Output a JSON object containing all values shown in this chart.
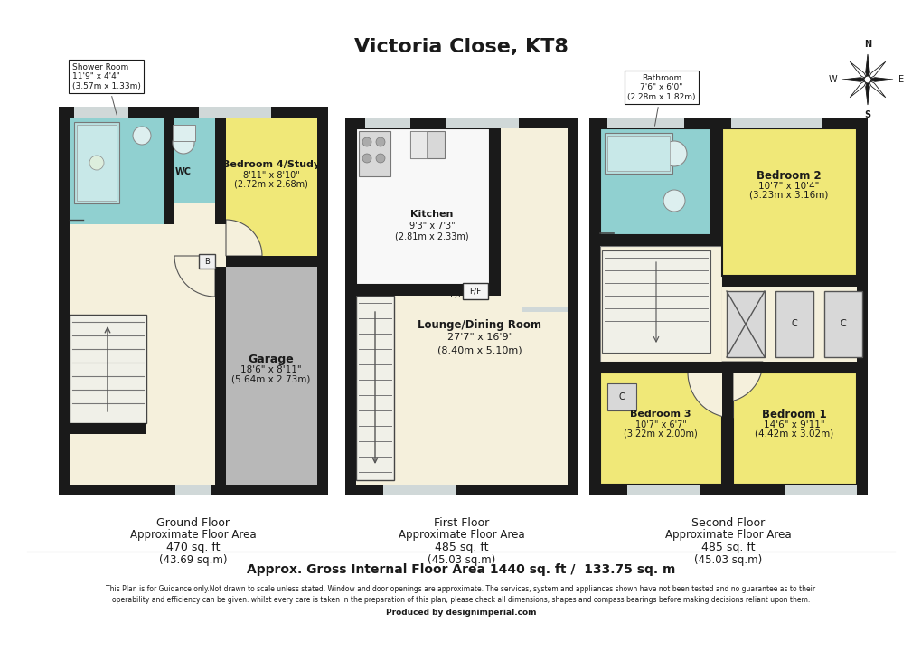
{
  "title": "Victoria Close, KT8",
  "background_color": "#ffffff",
  "colors": {
    "light_yellow": "#f0e878",
    "light_blue": "#90d0d0",
    "gray_garage": "#b8b8b8",
    "light_cream": "#f5f0dc",
    "wall": "#1a1a1a",
    "white": "#ffffff",
    "light_gray": "#d8d8d8",
    "stair_bg": "#f0f0f0"
  },
  "gross_area": "Approx. Gross Internal Floor Area 1440 sq. ft /  133.75 sq. m",
  "disclaimer1": "This Plan is for Guidance only.Not drawn to scale unless stated. Window and door openings are approximate. The services, system and appliances shown have not been tested and no guarantee as to their",
  "disclaimer2": "operability and efficiency can be given. whilst every care is taken in the preparation of this plan, please check all dimensions, shapes and compass bearings before making decisions reliant upon them.",
  "disclaimer3": "Produced by designimperial.com"
}
